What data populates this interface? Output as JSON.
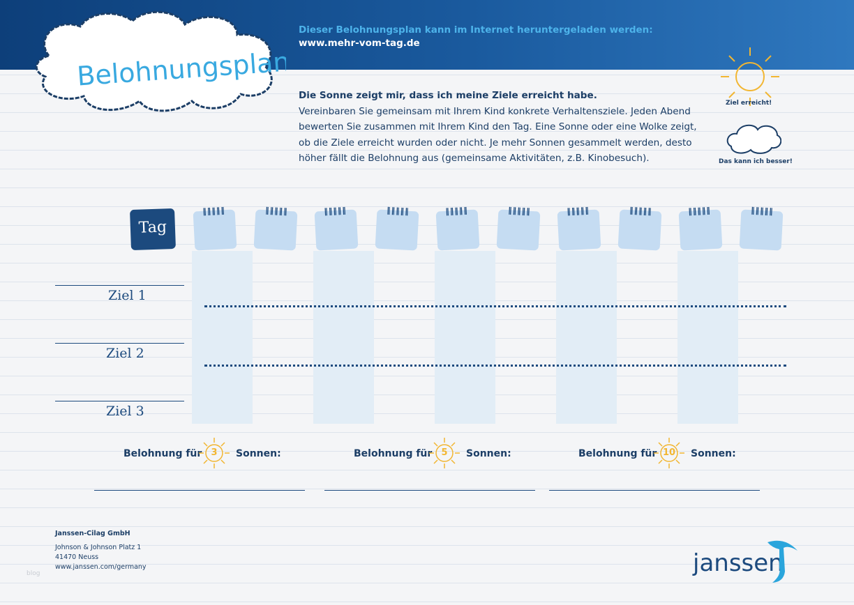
{
  "header": {
    "title": "Belohnungsplan",
    "download_note": "Dieser Belohnungsplan kann im Internet heruntergeladen werden:",
    "url": "www.mehr-vom-tag.de"
  },
  "intro": {
    "heading": "Die Sonne zeigt mir, dass ich meine Ziele erreicht habe.",
    "lines": [
      "Vereinbaren Sie gemeinsam mit Ihrem Kind konkrete Verhaltensziele. Jeden Abend",
      "bewerten Sie zusammen mit Ihrem Kind den Tag. Eine Sonne oder eine Wolke zeigt,",
      "ob die Ziele erreicht wurden oder nicht. Je mehr  Sonnen gesammelt werden, desto",
      "höher fällt die Belohnung aus (gemeinsame Aktivitäten, z.B. Kinobesuch)."
    ]
  },
  "legend": {
    "sun": "Ziel erreicht!",
    "cloud": "Das kann ich besser!"
  },
  "plan": {
    "day_label": "Tag",
    "goals": [
      "Ziel 1",
      "Ziel 2",
      "Ziel 3"
    ]
  },
  "rewards": [
    {
      "label": "Belohnung für",
      "count": 3,
      "suffix": "Sonnen:"
    },
    {
      "label": "Belohnung für",
      "count": 5,
      "suffix": "Sonnen:"
    },
    {
      "label": "Belohnung für",
      "count": 10,
      "suffix": "Sonnen:"
    }
  ],
  "footer": {
    "company": "Janssen-Cilag GmbH",
    "address": [
      "Johnson & Johnson Platz 1",
      "41470 Neuss",
      "www.janssen.com/germany"
    ],
    "logo": "janssen",
    "watermark": "blog"
  }
}
